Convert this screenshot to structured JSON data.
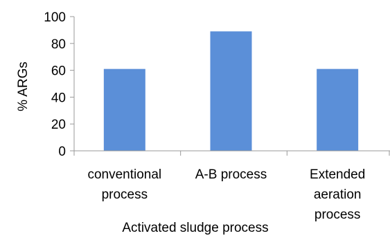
{
  "chart_data": {
    "type": "bar",
    "categories": [
      [
        "conventional",
        "process"
      ],
      [
        "A-B process"
      ],
      [
        "Extended",
        "aeration",
        "process"
      ]
    ],
    "values": [
      61,
      89,
      61
    ],
    "xlabel": "Activated sludge process",
    "ylabel": "% ARGs",
    "ylim": [
      0,
      100
    ],
    "yticks": [
      0,
      20,
      40,
      60,
      80,
      100
    ],
    "grid": false,
    "legend": "none",
    "colors": {
      "bar": "#5B8FD8",
      "axis": "#999999"
    }
  }
}
